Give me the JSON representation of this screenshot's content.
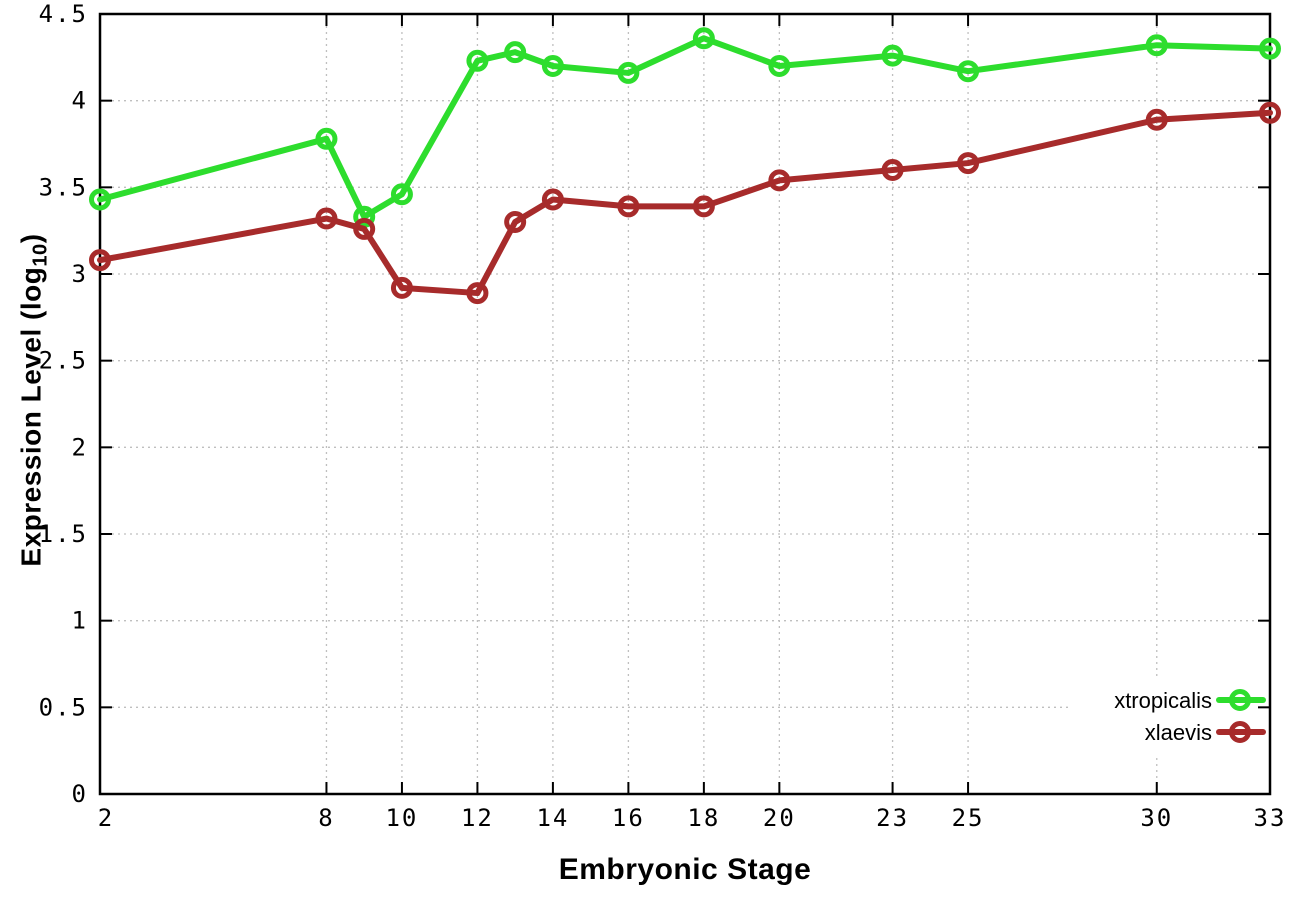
{
  "chart_data": {
    "type": "line",
    "title": "",
    "xlabel": "Embryonic Stage",
    "ylabel": {
      "main": "Expression Level (log",
      "sub": "10",
      "end": ")"
    },
    "xlim": [
      2,
      33
    ],
    "ylim": [
      0,
      4.5
    ],
    "grid": true,
    "grid_style": "dotted",
    "legend_position": "inside-bottom-right",
    "x_ticks": [
      2,
      8,
      10,
      12,
      14,
      16,
      18,
      20,
      23,
      25,
      30,
      33
    ],
    "x_tick_labels": [
      "2",
      "8",
      "10",
      "12",
      "14",
      "16",
      "18",
      "20",
      "23",
      "25",
      "30",
      "33"
    ],
    "y_ticks": [
      0,
      0.5,
      1,
      1.5,
      2,
      2.5,
      3,
      3.5,
      4,
      4.5
    ],
    "y_tick_labels": [
      "0",
      "0.5",
      "1",
      "1.5",
      "2",
      "2.5",
      "3",
      "3.5",
      "4",
      "4.5"
    ],
    "x": [
      2,
      8,
      9,
      10,
      12,
      13,
      14,
      16,
      18,
      20,
      23,
      25,
      30,
      33
    ],
    "series": [
      {
        "name": "xtropicalis",
        "color": "#2ddd2d",
        "marker": "open-circle",
        "values": [
          3.43,
          3.78,
          3.33,
          3.46,
          4.23,
          4.28,
          4.2,
          4.16,
          4.36,
          4.2,
          4.26,
          4.17,
          4.32,
          4.3
        ]
      },
      {
        "name": "xlaevis",
        "color": "#a72b2b",
        "marker": "open-circle",
        "values": [
          3.08,
          3.32,
          3.26,
          2.92,
          2.89,
          3.3,
          3.43,
          3.39,
          3.39,
          3.54,
          3.6,
          3.64,
          3.89,
          3.93
        ]
      }
    ]
  },
  "colors": {
    "background": "#ffffff",
    "axis": "#000000",
    "grid": "#bfbfbf",
    "series_xtropicalis": "#2ddd2d",
    "series_xlaevis": "#a72b2b"
  }
}
